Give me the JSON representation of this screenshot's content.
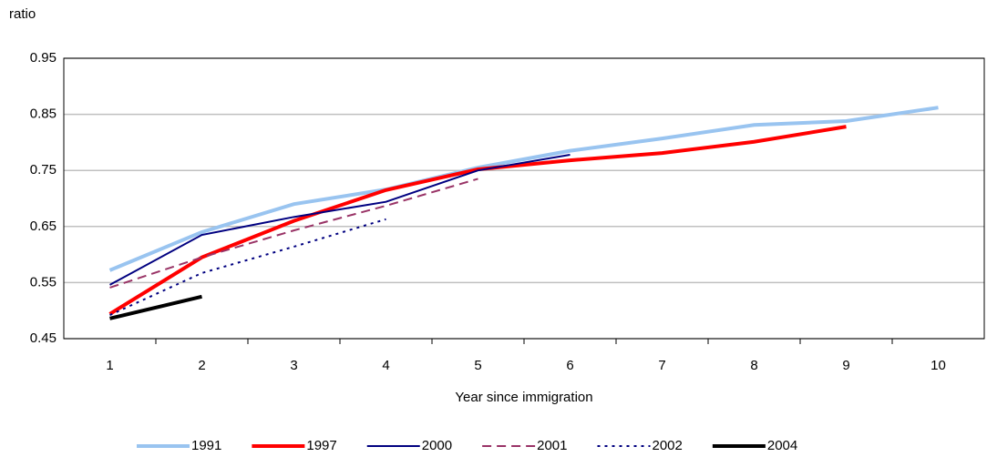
{
  "chart_data": {
    "type": "line",
    "y_label": "ratio",
    "x_label": "Year since immigration",
    "categories": [
      "1",
      "2",
      "3",
      "4",
      "5",
      "6",
      "7",
      "8",
      "9",
      "10"
    ],
    "ylim": [
      0.45,
      0.95
    ],
    "yticks": [
      0.45,
      0.55,
      0.65,
      0.75,
      0.85,
      0.95
    ],
    "grid": true,
    "legend": "bottom",
    "series": [
      {
        "name": "1991",
        "color": "#99c4f0",
        "style": "solid",
        "weight": "thick",
        "values": [
          0.572,
          0.64,
          0.69,
          0.716,
          0.755,
          0.785,
          0.807,
          0.831,
          0.838,
          0.862
        ]
      },
      {
        "name": "1997",
        "color": "#ff0000",
        "style": "solid",
        "weight": "thick",
        "values": [
          0.494,
          0.595,
          0.66,
          0.715,
          0.752,
          0.768,
          0.781,
          0.801,
          0.828,
          null
        ]
      },
      {
        "name": "2000",
        "color": "#000080",
        "style": "solid",
        "weight": "thin",
        "values": [
          0.546,
          0.635,
          0.667,
          0.694,
          0.75,
          0.778,
          null,
          null,
          null,
          null
        ]
      },
      {
        "name": "2001",
        "color": "#993366",
        "style": "dashed",
        "weight": "thin",
        "values": [
          0.541,
          0.595,
          0.643,
          0.687,
          0.735,
          null,
          null,
          null,
          null,
          null
        ]
      },
      {
        "name": "2002",
        "color": "#000080",
        "style": "dotted",
        "weight": "thin",
        "values": [
          0.492,
          0.567,
          0.614,
          0.663,
          null,
          null,
          null,
          null,
          null,
          null
        ]
      },
      {
        "name": "2004",
        "color": "#000000",
        "style": "solid",
        "weight": "thick",
        "values": [
          0.486,
          0.525,
          null,
          null,
          null,
          null,
          null,
          null,
          null,
          null
        ]
      }
    ]
  }
}
